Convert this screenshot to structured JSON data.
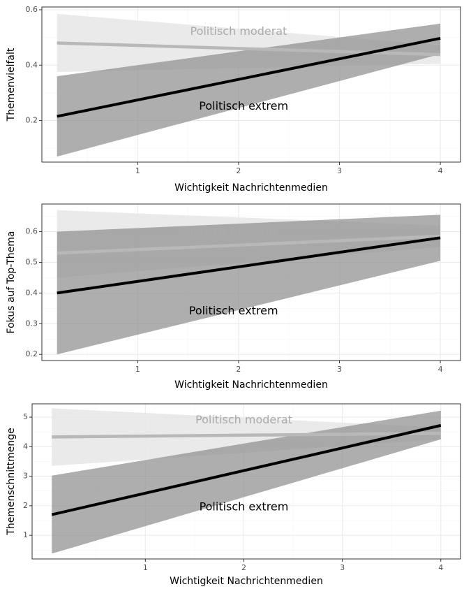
{
  "chart_data": [
    {
      "type": "line",
      "xlabel": "Wichtigkeit Nachrichtenmedien",
      "ylabel": "Themenvielfalt",
      "xlim": [
        0.05,
        4.2
      ],
      "ylim": [
        0.05,
        0.61
      ],
      "xticks": [
        1,
        2,
        3,
        4
      ],
      "yticks": [
        0.2,
        0.4,
        0.6
      ],
      "ytick_labels": [
        "0.2",
        "0.4",
        "0.6"
      ],
      "grid": true,
      "series": [
        {
          "name": "Politisch moderat",
          "color": "#b8b8b8",
          "band_color": "#e6e6e6",
          "x": [
            0.2,
            4
          ],
          "y": [
            0.48,
            0.438
          ],
          "lower": [
            0.375,
            0.405
          ],
          "upper": [
            0.585,
            0.472
          ]
        },
        {
          "name": "Politisch extrem",
          "color": "#000000",
          "band_color": "#8c8c8c",
          "x": [
            0.2,
            4
          ],
          "y": [
            0.215,
            0.497
          ],
          "lower": [
            0.07,
            0.44
          ],
          "upper": [
            0.36,
            0.55
          ]
        }
      ],
      "annotations": [
        {
          "text": "Politisch moderat",
          "x": 2.0,
          "y": 0.52,
          "color": "#aaaaaa"
        },
        {
          "text": "Politisch extrem",
          "x": 2.05,
          "y": 0.25,
          "color": "#000000"
        }
      ]
    },
    {
      "type": "line",
      "xlabel": "Wichtigkeit Nachrichtenmedien",
      "ylabel": "Fokus auf Top-Thema",
      "xlim": [
        0.05,
        4.2
      ],
      "ylim": [
        0.18,
        0.69
      ],
      "xticks": [
        1,
        2,
        3,
        4
      ],
      "yticks": [
        0.2,
        0.3,
        0.4,
        0.5,
        0.6
      ],
      "ytick_labels": [
        "0.2",
        "0.3",
        "0.4",
        "0.5",
        "0.6"
      ],
      "grid": true,
      "series": [
        {
          "name": "Politisch moderat",
          "color": "#b8b8b8",
          "band_color": "#e6e6e6",
          "x": [
            0.2,
            4
          ],
          "y": [
            0.53,
            0.585
          ],
          "lower": [
            0.45,
            0.55
          ],
          "upper": [
            0.67,
            0.62
          ]
        },
        {
          "name": "Politisch extrem",
          "color": "#000000",
          "band_color": "#8c8c8c",
          "x": [
            0.2,
            4
          ],
          "y": [
            0.4,
            0.58
          ],
          "lower": [
            0.2,
            0.505
          ],
          "upper": [
            0.6,
            0.655
          ]
        }
      ],
      "annotations": [
        {
          "text": "Politisch moderat",
          "x": 1.9,
          "y": 0.6,
          "color": "#aaaaaa"
        },
        {
          "text": "Politisch extrem",
          "x": 1.95,
          "y": 0.34,
          "color": "#000000"
        }
      ]
    },
    {
      "type": "line",
      "xlabel": "Wichtigkeit Nachrichtenmedien",
      "ylabel": "Themenschnittmenge",
      "xlim": [
        -0.15,
        4.2
      ],
      "ylim": [
        0.2,
        5.45
      ],
      "xticks": [
        1,
        2,
        3,
        4
      ],
      "yticks": [
        1,
        2,
        3,
        4,
        5
      ],
      "ytick_labels": [
        "1",
        "2",
        "3",
        "4",
        "5"
      ],
      "grid": true,
      "series": [
        {
          "name": "Politisch moderat",
          "color": "#b8b8b8",
          "band_color": "#e6e6e6",
          "x": [
            0.05,
            4
          ],
          "y": [
            4.33,
            4.45
          ],
          "lower": [
            3.35,
            4.25
          ],
          "upper": [
            5.3,
            4.65
          ]
        },
        {
          "name": "Politisch extrem",
          "color": "#000000",
          "band_color": "#8c8c8c",
          "x": [
            0.05,
            4
          ],
          "y": [
            1.7,
            4.72
          ],
          "lower": [
            0.38,
            4.25
          ],
          "upper": [
            3.02,
            5.22
          ]
        }
      ],
      "annotations": [
        {
          "text": "Politisch moderat",
          "x": 2.0,
          "y": 4.9,
          "color": "#aaaaaa"
        },
        {
          "text": "Politisch extrem",
          "x": 2.0,
          "y": 1.95,
          "color": "#000000"
        }
      ]
    }
  ]
}
